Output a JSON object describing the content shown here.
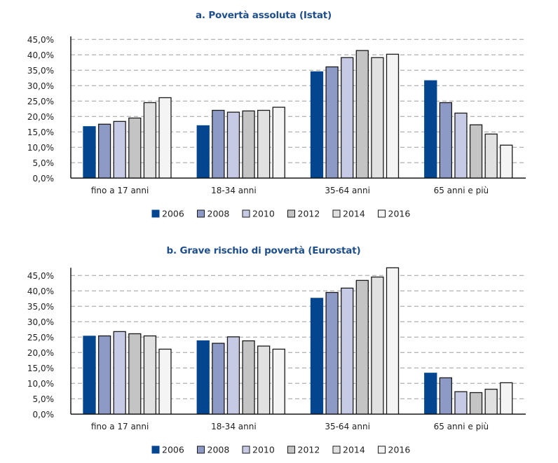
{
  "colors": {
    "2006": "#03468F",
    "2008": "#8E9AC6",
    "2010": "#C6CAE4",
    "2012": "#C4C4C4",
    "2014": "#E1E1E1",
    "2016": "#F4F4F4",
    "title": "#1F4E8C",
    "grid": "#9E9E9E",
    "axis": "#1A1A1A"
  },
  "chart_data": [
    {
      "type": "bar",
      "title": "a. Povertà assoluta (Istat)",
      "xlabel": "",
      "ylabel": "",
      "categories": [
        "fino a 17 anni",
        "18-34 anni",
        "35-64 anni",
        "65 anni e più"
      ],
      "yticks": [
        "0,0%",
        "5,0%",
        "10,0%",
        "15,0%",
        "20,0%",
        "25,0%",
        "30,0%",
        "35,0%",
        "40,0%",
        "45,0%"
      ],
      "ylim": [
        0,
        46
      ],
      "grid": true,
      "grid_style": "dashed",
      "legend_position": "bottom",
      "series": [
        {
          "name": "2006",
          "values": [
            16.7,
            17.0,
            34.5,
            31.6
          ]
        },
        {
          "name": "2008",
          "values": [
            17.5,
            22.0,
            36.1,
            24.5
          ]
        },
        {
          "name": "2010",
          "values": [
            18.4,
            21.4,
            39.1,
            21.1
          ]
        },
        {
          "name": "2012",
          "values": [
            19.5,
            21.8,
            41.4,
            17.3
          ]
        },
        {
          "name": "2014",
          "values": [
            24.5,
            22.0,
            39.1,
            14.3
          ]
        },
        {
          "name": "2016",
          "values": [
            26.1,
            23.0,
            40.2,
            10.7
          ]
        }
      ]
    },
    {
      "type": "bar",
      "title": "b. Grave rischio di povertà (Eurostat)",
      "xlabel": "",
      "ylabel": "",
      "categories": [
        "fino a 17 anni",
        "18-34 anni",
        "35-64 anni",
        "65 anni e più"
      ],
      "yticks": [
        "0,0%",
        "5,0%",
        "10,0%",
        "15,0%",
        "20,0%",
        "25,0%",
        "30,0%",
        "35,0%",
        "40,0%",
        "45,0%"
      ],
      "ylim": [
        0,
        47.5
      ],
      "grid": true,
      "grid_style": "dashed",
      "legend_position": "bottom",
      "series": [
        {
          "name": "2006",
          "values": [
            25.3,
            23.8,
            37.6,
            13.3
          ]
        },
        {
          "name": "2008",
          "values": [
            25.4,
            23.0,
            39.5,
            11.8
          ]
        },
        {
          "name": "2010",
          "values": [
            26.8,
            25.1,
            40.9,
            7.3
          ]
        },
        {
          "name": "2012",
          "values": [
            26.1,
            23.8,
            43.4,
            7.0
          ]
        },
        {
          "name": "2014",
          "values": [
            25.4,
            22.1,
            44.5,
            8.1
          ]
        },
        {
          "name": "2016",
          "values": [
            21.1,
            21.1,
            47.5,
            10.2
          ]
        }
      ]
    }
  ]
}
